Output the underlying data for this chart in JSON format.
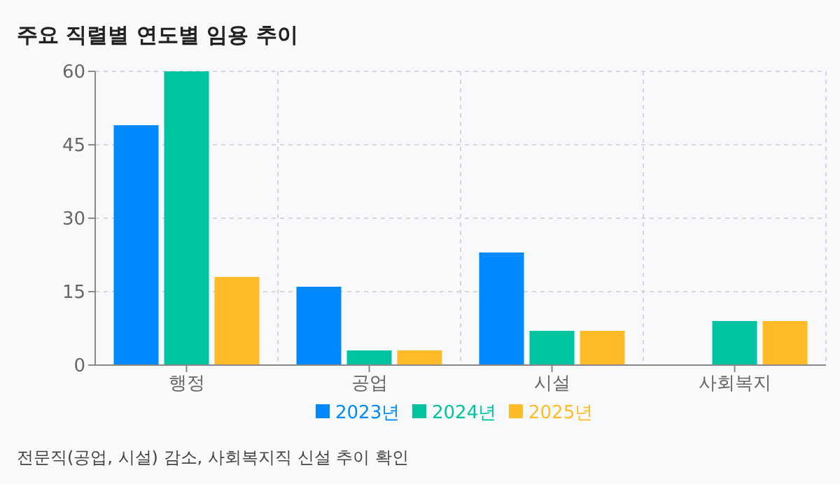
{
  "chart_data": {
    "type": "bar",
    "title": "주요 직렬별 연도별 임용 추이",
    "categories": [
      "행정",
      "공업",
      "시설",
      "사회복지"
    ],
    "series": [
      {
        "name": "2023년",
        "color": "#0088fe",
        "values": [
          49,
          16,
          23,
          null
        ]
      },
      {
        "name": "2024년",
        "color": "#00c49f",
        "values": [
          60,
          3,
          7,
          9
        ]
      },
      {
        "name": "2025년",
        "color": "#ffbb28",
        "values": [
          18,
          3,
          7,
          9
        ]
      }
    ],
    "ylim": [
      0,
      60
    ],
    "yticks": [
      0,
      15,
      30,
      45,
      60
    ],
    "grid": true,
    "legend": "bottom",
    "annotations": [
      "전문직(공업, 시설) 감소, 사회복지직 신설 추이 확인"
    ]
  }
}
